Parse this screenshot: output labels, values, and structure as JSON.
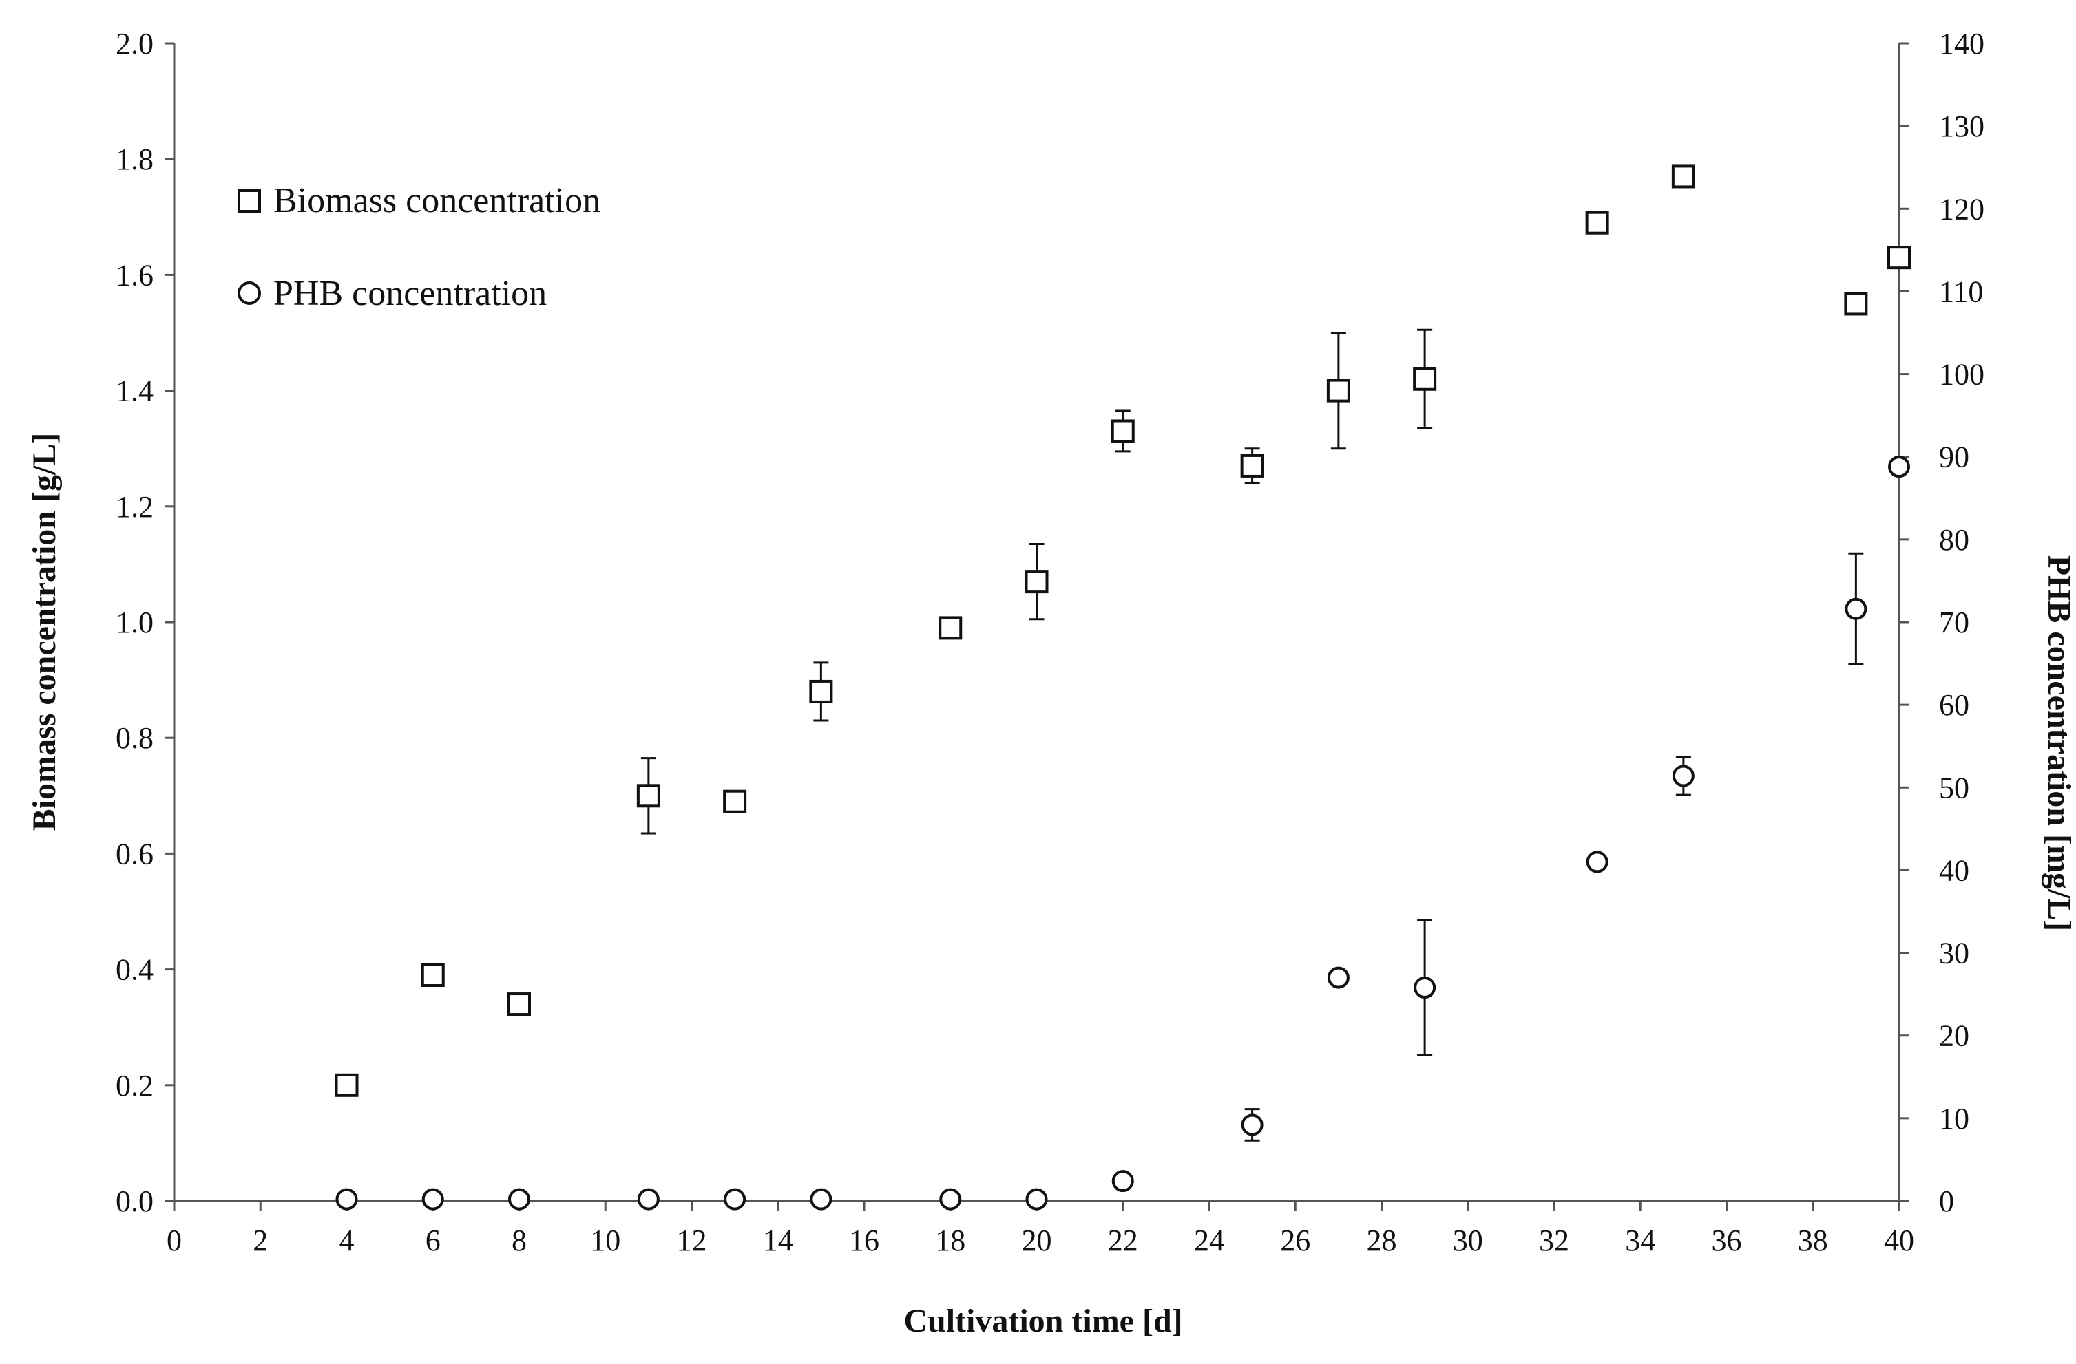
{
  "chart_data": {
    "type": "scatter",
    "xlabel": "Cultivation time [d]",
    "ylabel": "Biomass concentration [g/L]",
    "y2label": "PHB concentration [mg/L]",
    "xlim": [
      0,
      40
    ],
    "xticks": [
      0,
      2,
      4,
      6,
      8,
      10,
      12,
      14,
      16,
      18,
      20,
      22,
      24,
      26,
      28,
      30,
      32,
      34,
      36,
      38,
      40
    ],
    "ylim": [
      0,
      2.0
    ],
    "yticks": [
      "0.0",
      "0.2",
      "0.4",
      "0.6",
      "0.8",
      "1.0",
      "1.2",
      "1.4",
      "1.6",
      "1.8",
      "2.0"
    ],
    "y2lim": [
      0,
      140
    ],
    "y2ticks": [
      0,
      10,
      20,
      30,
      40,
      50,
      60,
      70,
      80,
      90,
      100,
      110,
      120,
      130,
      140
    ],
    "grid": false,
    "legend_position": "top-left",
    "series": [
      {
        "name": "Biomass concentration",
        "marker": "square",
        "axis": "left",
        "points": [
          {
            "x": 4,
            "y": 0.2,
            "err": 0
          },
          {
            "x": 6,
            "y": 0.39,
            "err": 0.015
          },
          {
            "x": 8,
            "y": 0.34,
            "err": 0.01
          },
          {
            "x": 11,
            "y": 0.7,
            "err": 0.065
          },
          {
            "x": 13,
            "y": 0.69,
            "err": 0.01
          },
          {
            "x": 15,
            "y": 0.88,
            "err": 0.05
          },
          {
            "x": 18,
            "y": 0.99,
            "err": 0.01
          },
          {
            "x": 20,
            "y": 1.07,
            "err": 0.065
          },
          {
            "x": 22,
            "y": 1.33,
            "err": 0.035
          },
          {
            "x": 25,
            "y": 1.27,
            "err": 0.03
          },
          {
            "x": 27,
            "y": 1.4,
            "err": 0.1
          },
          {
            "x": 29,
            "y": 1.42,
            "err": 0.085
          },
          {
            "x": 33,
            "y": 1.69,
            "err": 0.015
          },
          {
            "x": 35,
            "y": 1.77,
            "err": 0.01
          },
          {
            "x": 39,
            "y": 1.55,
            "err": 0.01
          },
          {
            "x": 40,
            "y": 1.63,
            "err": 0.015
          }
        ]
      },
      {
        "name": "PHB concentration",
        "marker": "circle",
        "axis": "right",
        "points": [
          {
            "x": 4,
            "y": 0.2,
            "err": 0
          },
          {
            "x": 6,
            "y": 0.2,
            "err": 0
          },
          {
            "x": 8,
            "y": 0.2,
            "err": 0
          },
          {
            "x": 11,
            "y": 0.2,
            "err": 0
          },
          {
            "x": 13,
            "y": 0.2,
            "err": 0
          },
          {
            "x": 15,
            "y": 0.2,
            "err": 0
          },
          {
            "x": 18,
            "y": 0.2,
            "err": 0
          },
          {
            "x": 20,
            "y": 0.2,
            "err": 0
          },
          {
            "x": 22,
            "y": 2.4,
            "err": 0.4
          },
          {
            "x": 25,
            "y": 9.2,
            "err": 1.9
          },
          {
            "x": 27,
            "y": 27.0,
            "err": 0.5
          },
          {
            "x": 29,
            "y": 25.8,
            "err": 8.2
          },
          {
            "x": 33,
            "y": 41.0,
            "err": 0.5
          },
          {
            "x": 35,
            "y": 51.4,
            "err": 2.3
          },
          {
            "x": 39,
            "y": 71.6,
            "err": 6.7
          },
          {
            "x": 40,
            "y": 88.8,
            "err": 0.5
          }
        ]
      }
    ],
    "colors": {
      "axis": "#555555",
      "marker": "#111111",
      "text": "#111111"
    }
  }
}
